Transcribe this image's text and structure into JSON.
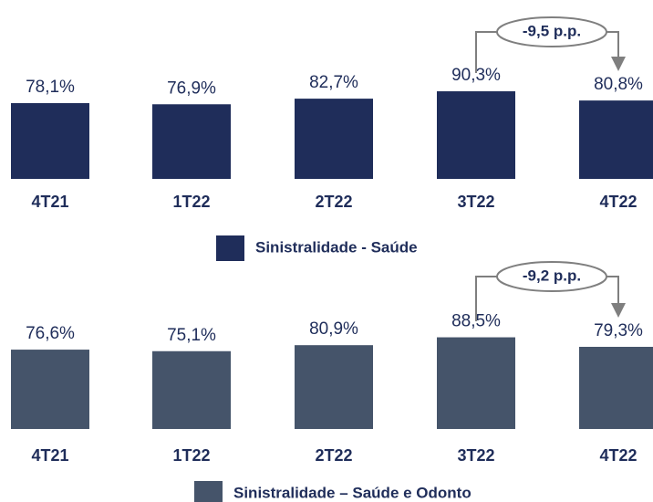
{
  "chart_data": [
    {
      "type": "bar",
      "categories": [
        "4T21",
        "1T22",
        "2T22",
        "3T22",
        "4T22"
      ],
      "series": [
        {
          "name": "Sinistralidade - Saúde",
          "color": "#1f2d5a",
          "values": [
            78.1,
            76.9,
            82.7,
            90.3,
            80.8
          ],
          "value_labels": [
            "78,1%",
            "76,9%",
            "82,7%",
            "90,3%",
            "80,8%"
          ]
        }
      ],
      "annotation": "-9,5 p.p."
    },
    {
      "type": "bar",
      "categories": [
        "4T21",
        "1T22",
        "2T22",
        "3T22",
        "4T22"
      ],
      "series": [
        {
          "name": "Sinistralidade – Saúde e Odonto",
          "color": "#45546a",
          "values": [
            76.6,
            75.1,
            80.9,
            88.5,
            79.3
          ],
          "value_labels": [
            "76,6%",
            "75,1%",
            "80,9%",
            "88,5%",
            "79,3%"
          ]
        }
      ],
      "annotation": "-9,2 p.p."
    }
  ]
}
